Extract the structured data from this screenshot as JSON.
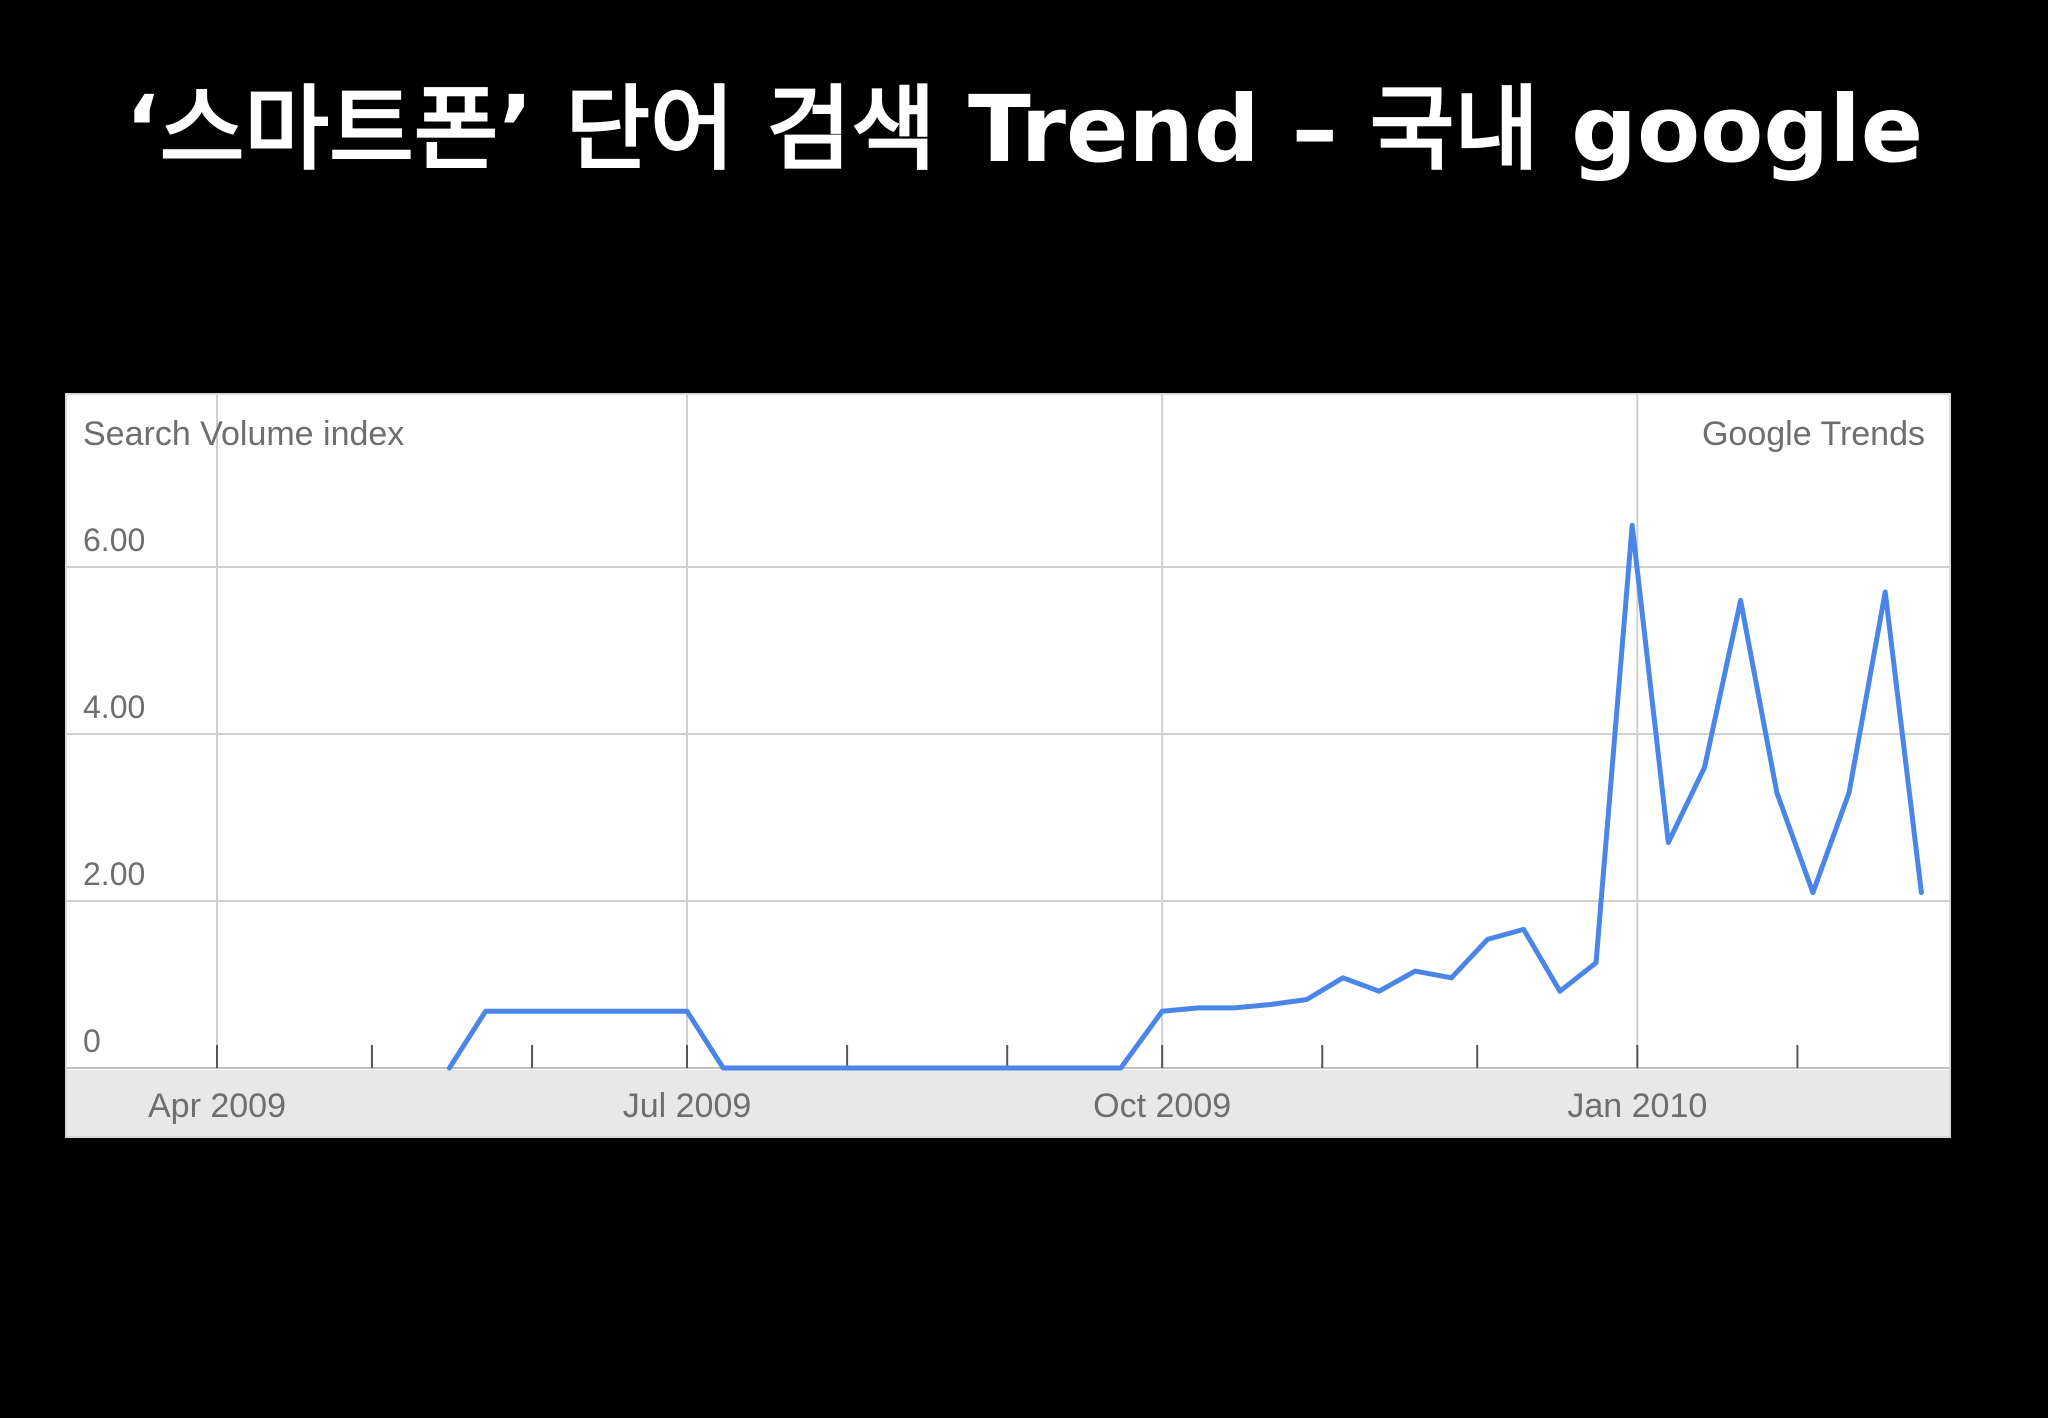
{
  "slide": {
    "title": "‘스마트폰’ 단어 검색 Trend – 국내 google"
  },
  "colors": {
    "background": "#000000",
    "title": "#ffffff",
    "line": "#4a86e8",
    "grid": "#d0d0d0",
    "axis_band": "#e8e8e8"
  },
  "chart_data": {
    "type": "line",
    "title": "",
    "ylabel": "Search Volume index",
    "source_label": "Google Trends",
    "ylim": [
      0,
      6.5
    ],
    "y_ticks": [
      {
        "value": 0,
        "label": "0"
      },
      {
        "value": 2,
        "label": "2.00"
      },
      {
        "value": 4,
        "label": "4.00"
      },
      {
        "value": 6,
        "label": "6.00"
      }
    ],
    "x_labels": [
      {
        "date": "2009-04-01",
        "label": "Apr 2009"
      },
      {
        "date": "2009-07-01",
        "label": "Jul 2009"
      },
      {
        "date": "2009-10-01",
        "label": "Oct 2009"
      },
      {
        "date": "2010-01-01",
        "label": "Jan 2010"
      }
    ],
    "x_range": [
      "2009-03-01",
      "2010-03-20"
    ],
    "grid": true,
    "series": [
      {
        "points": [
          {
            "date": "2009-05-16",
            "value": 0
          },
          {
            "date": "2009-05-23",
            "value": 0.68
          },
          {
            "date": "2009-07-01",
            "value": 0.68
          },
          {
            "date": "2009-07-08",
            "value": 0
          },
          {
            "date": "2009-09-23",
            "value": 0
          },
          {
            "date": "2009-10-01",
            "value": 0.68
          },
          {
            "date": "2009-10-08",
            "value": 0.72
          },
          {
            "date": "2009-10-15",
            "value": 0.72
          },
          {
            "date": "2009-10-22",
            "value": 0.76
          },
          {
            "date": "2009-10-29",
            "value": 0.82
          },
          {
            "date": "2009-11-05",
            "value": 1.08
          },
          {
            "date": "2009-11-12",
            "value": 0.92
          },
          {
            "date": "2009-11-19",
            "value": 1.16
          },
          {
            "date": "2009-11-26",
            "value": 1.08
          },
          {
            "date": "2009-12-03",
            "value": 1.54
          },
          {
            "date": "2009-12-10",
            "value": 1.66
          },
          {
            "date": "2009-12-17",
            "value": 0.92
          },
          {
            "date": "2009-12-24",
            "value": 1.26
          },
          {
            "date": "2009-12-31",
            "value": 6.5
          },
          {
            "date": "2010-01-07",
            "value": 2.7
          },
          {
            "date": "2010-01-14",
            "value": 3.6
          },
          {
            "date": "2010-01-21",
            "value": 5.6
          },
          {
            "date": "2010-01-28",
            "value": 3.3
          },
          {
            "date": "2010-02-04",
            "value": 2.1
          },
          {
            "date": "2010-02-11",
            "value": 3.3
          },
          {
            "date": "2010-02-18",
            "value": 5.7
          },
          {
            "date": "2010-02-25",
            "value": 2.1
          }
        ]
      }
    ]
  }
}
